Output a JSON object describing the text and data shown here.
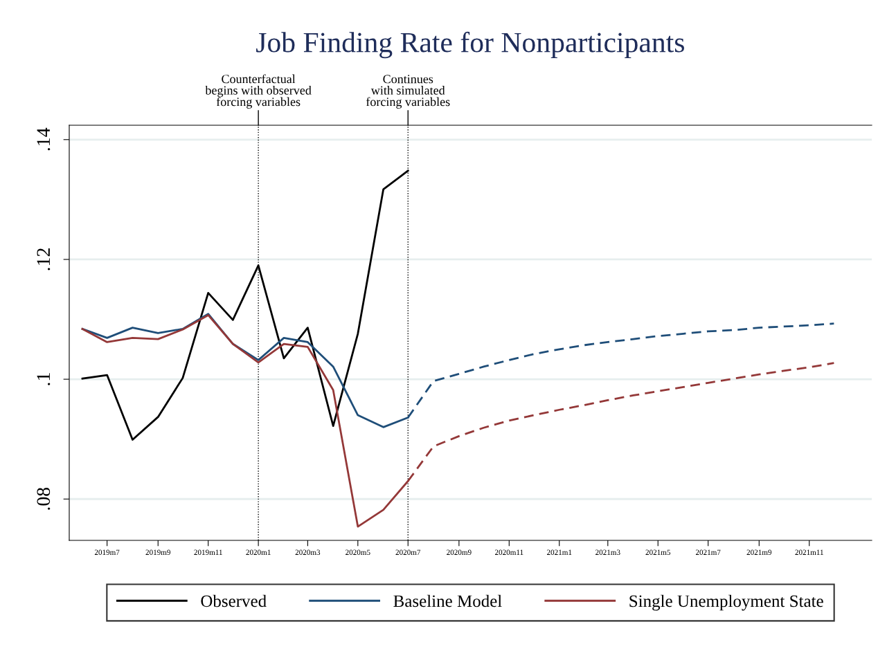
{
  "chart_data": {
    "type": "line",
    "title": "Job Finding Rate for Nonparticipants",
    "xlim": [
      "2019-05-16",
      "2022-01-16"
    ],
    "xticks": [
      {
        "value": "2019-07",
        "label": "2019m7"
      },
      {
        "value": "2019-09",
        "label": "2019m9"
      },
      {
        "value": "2019-11",
        "label": "2019m11"
      },
      {
        "value": "2020-01",
        "label": "2020m1"
      },
      {
        "value": "2020-03",
        "label": "2020m3"
      },
      {
        "value": "2020-05",
        "label": "2020m5"
      },
      {
        "value": "2020-07",
        "label": "2020m7"
      },
      {
        "value": "2020-09",
        "label": "2020m9"
      },
      {
        "value": "2020-11",
        "label": "2020m11"
      },
      {
        "value": "2021-01",
        "label": "2021m1"
      },
      {
        "value": "2021-03",
        "label": "2021m3"
      },
      {
        "value": "2021-05",
        "label": "2021m5"
      },
      {
        "value": "2021-07",
        "label": "2021m7"
      },
      {
        "value": "2021-09",
        "label": "2021m9"
      },
      {
        "value": "2021-11",
        "label": "2021m11"
      }
    ],
    "ylim": [
      0.0731,
      0.1424
    ],
    "yticks": [
      {
        "value": 0.08,
        "label": ".08"
      },
      {
        "value": 0.1,
        "label": ".1"
      },
      {
        "value": 0.12,
        "label": ".12"
      },
      {
        "value": 0.14,
        "label": ".14"
      }
    ],
    "grid": "y",
    "legend": "bottom",
    "marker": "none",
    "series": [
      {
        "name": "Observed",
        "color": "#000000",
        "line_style": "solid",
        "x": [
          "2019-06",
          "2019-07",
          "2019-08",
          "2019-09",
          "2019-10",
          "2019-11",
          "2019-12",
          "2020-01",
          "2020-02",
          "2020-03",
          "2020-04",
          "2020-05",
          "2020-06",
          "2020-07"
        ],
        "values": [
          0.1001,
          0.1007,
          0.0899,
          0.0937,
          0.1002,
          0.1144,
          0.1099,
          0.119,
          0.1035,
          0.1086,
          0.0922,
          0.1076,
          0.1317,
          0.1348
        ]
      },
      {
        "name": "Baseline Model",
        "color": "#1f4e79",
        "line_style": "solid",
        "x": [
          "2019-06",
          "2019-07",
          "2019-08",
          "2019-09",
          "2019-10",
          "2019-11",
          "2019-12",
          "2020-01",
          "2020-02",
          "2020-03",
          "2020-04",
          "2020-05",
          "2020-06",
          "2020-07"
        ],
        "values": [
          0.1084,
          0.1069,
          0.1086,
          0.1077,
          0.1084,
          0.1109,
          0.1059,
          0.1032,
          0.1069,
          0.1062,
          0.1021,
          0.094,
          0.092,
          0.0936
        ]
      },
      {
        "name": "Single Unemployment State",
        "color": "#943838",
        "line_style": "solid",
        "x": [
          "2019-06",
          "2019-07",
          "2019-08",
          "2019-09",
          "2019-10",
          "2019-11",
          "2019-12",
          "2020-01",
          "2020-02",
          "2020-03",
          "2020-04",
          "2020-05",
          "2020-06",
          "2020-07"
        ],
        "values": [
          0.1084,
          0.1062,
          0.1069,
          0.1067,
          0.1083,
          0.1107,
          0.1059,
          0.1028,
          0.1059,
          0.1054,
          0.0982,
          0.0754,
          0.0782,
          0.083
        ]
      },
      {
        "color": "#1f4e79",
        "line_style": "dashed",
        "x": [
          "2020-07",
          "2020-08",
          "2020-09",
          "2020-10",
          "2020-11",
          "2020-12",
          "2021-01",
          "2021-02",
          "2021-03",
          "2021-04",
          "2021-05",
          "2021-06",
          "2021-07",
          "2021-08",
          "2021-09",
          "2021-10",
          "2021-11",
          "2021-12"
        ],
        "values": [
          0.0936,
          0.0997,
          0.1009,
          0.1021,
          0.1032,
          0.1042,
          0.105,
          0.1057,
          0.1062,
          0.1067,
          0.1072,
          0.1076,
          0.108,
          0.1082,
          0.1086,
          0.1088,
          0.109,
          0.1093
        ]
      },
      {
        "color": "#943838",
        "line_style": "dashed",
        "x": [
          "2020-07",
          "2020-08",
          "2020-09",
          "2020-10",
          "2020-11",
          "2020-12",
          "2021-01",
          "2021-02",
          "2021-03",
          "2021-04",
          "2021-05",
          "2021-06",
          "2021-07",
          "2021-08",
          "2021-09",
          "2021-10",
          "2021-11",
          "2021-12"
        ],
        "values": [
          0.083,
          0.0888,
          0.0905,
          0.0919,
          0.0931,
          0.094,
          0.0949,
          0.0957,
          0.0965,
          0.0973,
          0.098,
          0.0987,
          0.0994,
          0.1001,
          0.1008,
          0.1014,
          0.102,
          0.1027
        ]
      }
    ],
    "ref_lines": [
      {
        "axis": "x",
        "value": "2020-01",
        "label": "Counterfactual\nbegins with observed\nforcing variables",
        "color": "#000000",
        "line_style": "dotted"
      },
      {
        "axis": "x",
        "value": "2020-07",
        "label": "Continues\nwith simulated\nforcing variables",
        "color": "#000000",
        "line_style": "dotted"
      }
    ]
  }
}
